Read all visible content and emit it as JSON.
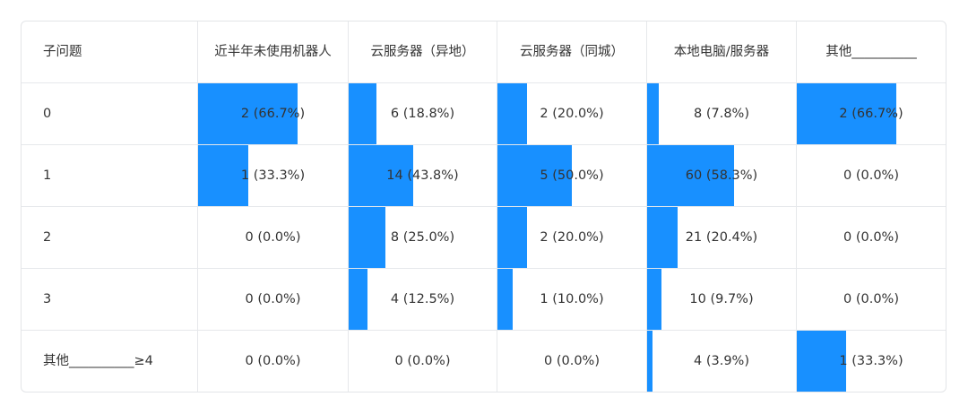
{
  "chart_data": {
    "type": "table",
    "columns": [
      "子问题",
      "近半年未使用机器人",
      "云服务器（异地）",
      "云服务器（同城）",
      "本地电脑/服务器",
      "其他__________"
    ],
    "rows": [
      {
        "label": "0",
        "cells": [
          {
            "count": 2,
            "pct": 66.7,
            "text": "2 (66.7%)"
          },
          {
            "count": 6,
            "pct": 18.8,
            "text": "6 (18.8%)"
          },
          {
            "count": 2,
            "pct": 20.0,
            "text": "2 (20.0%)"
          },
          {
            "count": 8,
            "pct": 7.8,
            "text": "8 (7.8%)"
          },
          {
            "count": 2,
            "pct": 66.7,
            "text": "2 (66.7%)"
          }
        ]
      },
      {
        "label": "1",
        "cells": [
          {
            "count": 1,
            "pct": 33.3,
            "text": "1 (33.3%)"
          },
          {
            "count": 14,
            "pct": 43.8,
            "text": "14 (43.8%)"
          },
          {
            "count": 5,
            "pct": 50.0,
            "text": "5 (50.0%)"
          },
          {
            "count": 60,
            "pct": 58.3,
            "text": "60 (58.3%)"
          },
          {
            "count": 0,
            "pct": 0.0,
            "text": "0 (0.0%)"
          }
        ]
      },
      {
        "label": "2",
        "cells": [
          {
            "count": 0,
            "pct": 0.0,
            "text": "0 (0.0%)"
          },
          {
            "count": 8,
            "pct": 25.0,
            "text": "8 (25.0%)"
          },
          {
            "count": 2,
            "pct": 20.0,
            "text": "2 (20.0%)"
          },
          {
            "count": 21,
            "pct": 20.4,
            "text": "21 (20.4%)"
          },
          {
            "count": 0,
            "pct": 0.0,
            "text": "0 (0.0%)"
          }
        ]
      },
      {
        "label": "3",
        "cells": [
          {
            "count": 0,
            "pct": 0.0,
            "text": "0 (0.0%)"
          },
          {
            "count": 4,
            "pct": 12.5,
            "text": "4 (12.5%)"
          },
          {
            "count": 1,
            "pct": 10.0,
            "text": "1 (10.0%)"
          },
          {
            "count": 10,
            "pct": 9.7,
            "text": "10 (9.7%)"
          },
          {
            "count": 0,
            "pct": 0.0,
            "text": "0 (0.0%)"
          }
        ]
      },
      {
        "label": "其他__________≥4",
        "cells": [
          {
            "count": 0,
            "pct": 0.0,
            "text": "0 (0.0%)"
          },
          {
            "count": 0,
            "pct": 0.0,
            "text": "0 (0.0%)"
          },
          {
            "count": 0,
            "pct": 0.0,
            "text": "0 (0.0%)"
          },
          {
            "count": 4,
            "pct": 3.9,
            "text": "4 (3.9%)"
          },
          {
            "count": 1,
            "pct": 33.3,
            "text": "1 (33.3%)"
          }
        ]
      }
    ],
    "bar_color": "#1890ff",
    "border_color": "#e6e8eb"
  }
}
